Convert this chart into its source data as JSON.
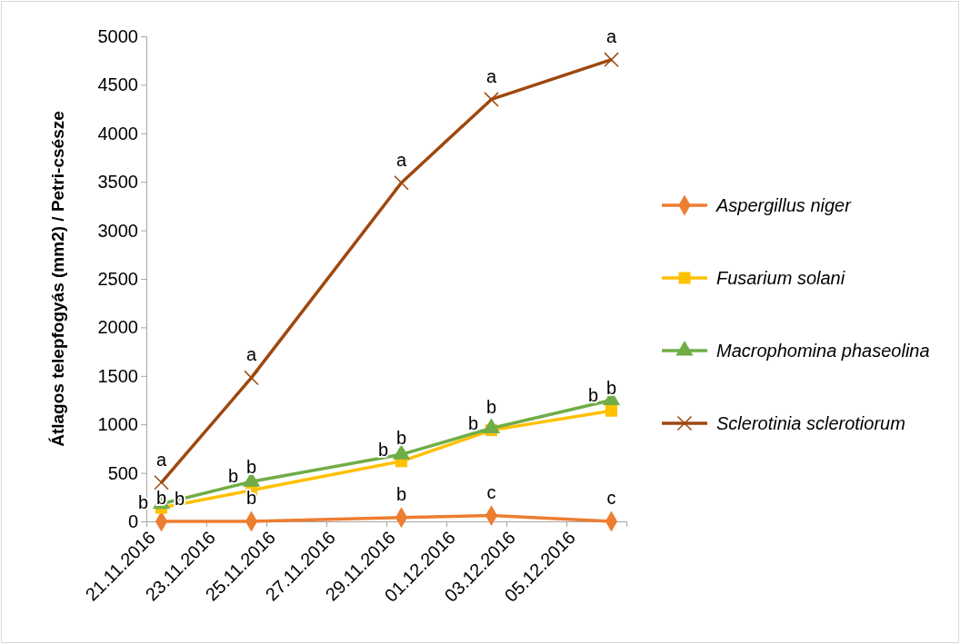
{
  "chart_data": {
    "type": "line",
    "ylabel": "Átlagos telepfogyás (mm2) / Petri-csésze",
    "x": [
      "2016-11-21T12:00",
      "2016-11-24T12:00",
      "2016-11-29T12:00",
      "2016-12-02T12:00",
      "2016-12-06T12:00"
    ],
    "xlim": [
      "2016-11-21",
      "2016-12-07"
    ],
    "xticks": [
      {
        "value": "2016-11-21",
        "label": "21.11.2016"
      },
      {
        "value": "2016-11-23",
        "label": "23.11.2016"
      },
      {
        "value": "2016-11-25",
        "label": "25.11.2016"
      },
      {
        "value": "2016-11-27",
        "label": "27.11.2016"
      },
      {
        "value": "2016-11-29",
        "label": "29.11.2016"
      },
      {
        "value": "2016-12-01",
        "label": "01.12.2016"
      },
      {
        "value": "2016-12-03",
        "label": "03.12.2016"
      },
      {
        "value": "2016-12-05",
        "label": "05.12.2016"
      },
      {
        "value": "2016-12-07",
        "label": null
      }
    ],
    "ylim": [
      0,
      5000
    ],
    "yticks": [
      0,
      500,
      1000,
      1500,
      2000,
      2500,
      3000,
      3500,
      4000,
      4500,
      5000
    ],
    "grid": false,
    "legend": "right",
    "line_style": "solid",
    "series": [
      {
        "name": "Aspergillus niger",
        "color": "#ed7d31",
        "marker": "diamond",
        "values": [
          0,
          0,
          40,
          60,
          0
        ],
        "value_labels": [
          "b",
          "b",
          "b",
          "c",
          "c"
        ]
      },
      {
        "name": "Fusarium solani",
        "color": "#ffc000",
        "marker": "square",
        "values": [
          140,
          320,
          620,
          940,
          1140
        ],
        "value_labels": [
          "b",
          "b",
          "b",
          "b",
          "b"
        ]
      },
      {
        "name": "Macrophomina phaseolina",
        "color": "#70ad47",
        "marker": "triangle",
        "values": [
          180,
          410,
          690,
          960,
          1250
        ],
        "value_labels": [
          "b",
          "b",
          "b",
          "b",
          "b"
        ]
      },
      {
        "name": "Sclerotinia sclerotiorum",
        "color": "#9e480e",
        "marker": "cross",
        "values": [
          400,
          1480,
          3490,
          4350,
          4760
        ],
        "value_labels": [
          "a",
          "a",
          "a",
          "a",
          "a"
        ]
      }
    ]
  }
}
